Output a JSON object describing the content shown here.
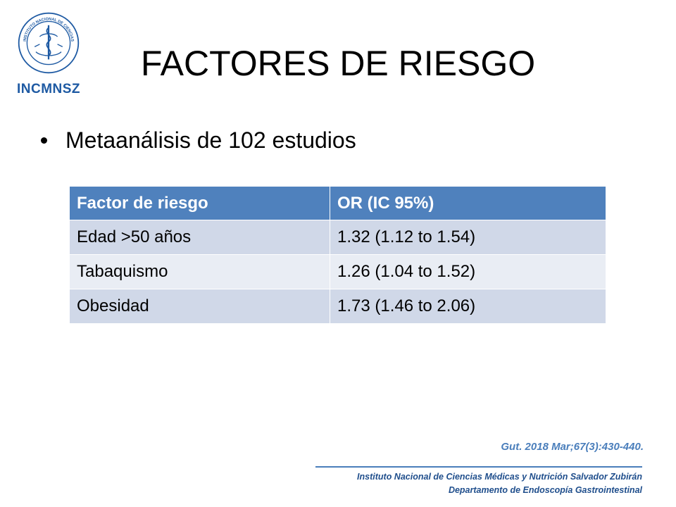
{
  "logo": {
    "text": "INCMNSZ",
    "seal_text": "INSTITUTO NACIONAL DE CIENCIAS MÉDICAS Y NUTRICIÓN SALVADOR ZUBIRÁN",
    "color": "#1e5aa3"
  },
  "slide": {
    "title": "FACTORES DE RIESGO",
    "bullet": "Metaanálisis de 102 estudios"
  },
  "table": {
    "headers": [
      "Factor de riesgo",
      "OR (IC 95%)"
    ],
    "rows": [
      [
        "Edad >50 años",
        "1.32 (1.12 to 1.54)"
      ],
      [
        "Tabaquismo",
        "1.26 (1.04 to 1.52)"
      ],
      [
        "Obesidad",
        "1.73 (1.46 to 2.06)"
      ]
    ],
    "header_color": "#4f81bd",
    "row_color_odd": "#d0d8e8",
    "row_color_even": "#e9edf4"
  },
  "citation": "Gut. 2018 Mar;67(3):430-440.",
  "footer": {
    "line1": "Instituto Nacional de Ciencias Médicas y Nutrición Salvador Zubirán",
    "line2": "Departamento de Endoscopía Gastrointestinal",
    "color": "#1f4e8c"
  }
}
